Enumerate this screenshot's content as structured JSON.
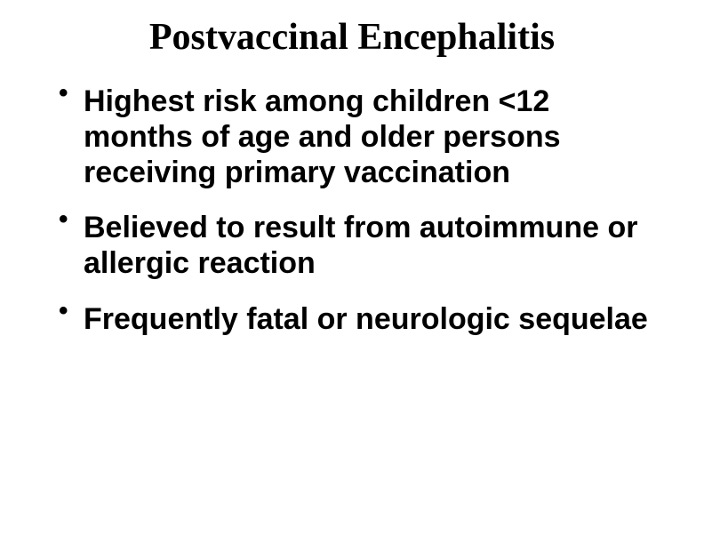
{
  "slide": {
    "title": "Postvaccinal Encephalitis",
    "title_fontsize": 42,
    "bullets": [
      {
        "text": "Highest risk among children <12 months of age and older persons receiving primary vaccination"
      },
      {
        "text": "Believed to result from autoimmune or allergic reaction"
      },
      {
        "text": "Frequently fatal or neurologic sequelae"
      }
    ],
    "bullet_fontsize": 34,
    "text_color": "#000000",
    "background_color": "#ffffff"
  }
}
